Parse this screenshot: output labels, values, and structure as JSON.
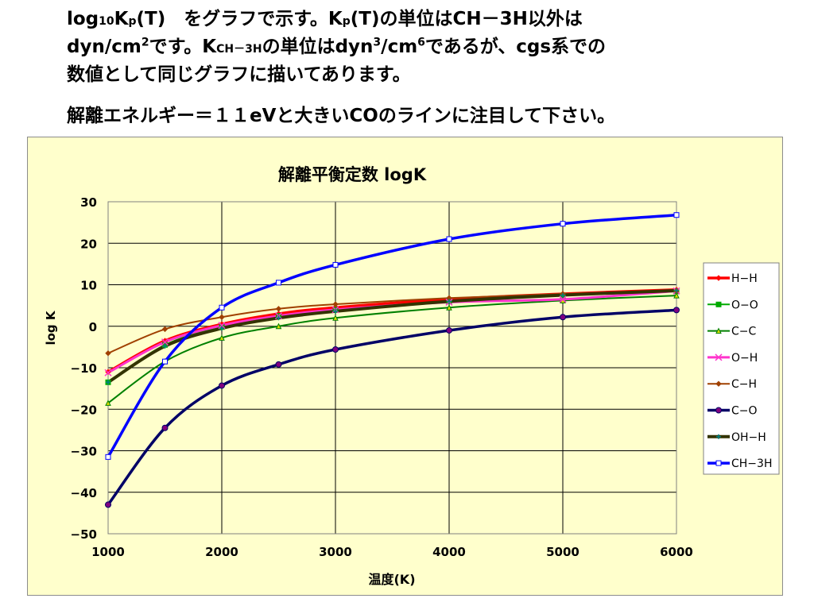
{
  "heading": {
    "line1_a": "log",
    "line1_sub": "10",
    "line1_b": "K",
    "line1_sub2": "p",
    "line1_c": "(T)　をグラフで示す。K",
    "line1_sub3": "p",
    "line1_d": "(T)の単位はCH－3H以外は",
    "line2_a": "dyn/cm",
    "line2_sup": "2",
    "line2_b": "です。K",
    "line2_sub": "CH－3H",
    "line2_c": "の単位はdyn",
    "line2_sup2": "3",
    "line2_d": "/cm",
    "line2_sup3": "6",
    "line2_e": "であるが、cgs系での",
    "line3": "数値として同じグラフに描いてあります。",
    "line4": "解離エネルギー＝１１eVと大きいCOのラインに注目して下さい。"
  },
  "chart_data": {
    "type": "line",
    "title": "解離平衡定数 logK",
    "xlabel": "温度(K)",
    "ylabel": "log K",
    "xlim": [
      1000,
      6000
    ],
    "ylim": [
      -50,
      30
    ],
    "xticks": [
      "1000",
      "2000",
      "3000",
      "4000",
      "5000",
      "6000"
    ],
    "yticks": [
      "30",
      "20",
      "10",
      "0",
      "−10",
      "−20",
      "−30",
      "−40",
      "−50"
    ],
    "grid": true,
    "legend_position": "right",
    "x": [
      1000,
      1500,
      2000,
      2500,
      3000,
      4000,
      5000,
      6000
    ],
    "series": [
      {
        "name": "H−H",
        "color": "#ff0000",
        "marker": "diamond",
        "values": [
          -11,
          -3.5,
          0.5,
          3.0,
          4.5,
          6.5,
          7.8,
          8.8
        ]
      },
      {
        "name": "O−O",
        "color": "#00aa00",
        "marker": "square",
        "values": [
          -13.5,
          -4.5,
          -0.2,
          2.5,
          4.0,
          6.0,
          7.4,
          8.4
        ]
      },
      {
        "name": "C−C",
        "color": "#008000",
        "marker": "triangle",
        "values": [
          -18.5,
          -8.5,
          -2.8,
          0.0,
          2.0,
          4.5,
          6.2,
          7.4
        ]
      },
      {
        "name": "O−H",
        "color": "#ff33cc",
        "marker": "x",
        "values": [
          -11.2,
          -3.8,
          0.2,
          2.5,
          4.0,
          5.8,
          6.5,
          8.5
        ]
      },
      {
        "name": "C−H",
        "color": "#a04000",
        "marker": "plus",
        "values": [
          -6.5,
          -0.7,
          2.2,
          4.2,
          5.3,
          6.8,
          7.8,
          8.5
        ]
      },
      {
        "name": "C−O",
        "color": "#000066",
        "marker": "circle",
        "values": [
          -43,
          -24.5,
          -14.3,
          -9.2,
          -5.6,
          -1.0,
          2.2,
          3.9
        ]
      },
      {
        "name": "OH−H",
        "color": "#333300",
        "marker": "star",
        "values": [
          -13.5,
          -4.8,
          -0.5,
          2.0,
          3.6,
          6.0,
          7.5,
          8.6
        ]
      },
      {
        "name": "CH−3H",
        "color": "#0000ff",
        "marker": "square",
        "values": [
          -31.5,
          -8.5,
          4.5,
          10.5,
          14.8,
          21,
          24.7,
          26.8
        ]
      }
    ]
  }
}
